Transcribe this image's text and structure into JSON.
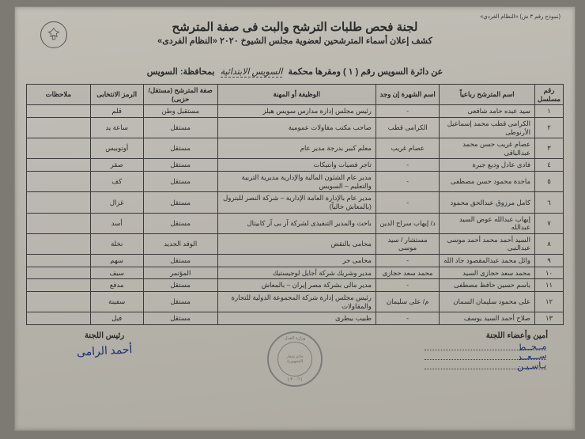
{
  "form_no": "(نموذج رقم ٣ ش) «النظام الفردي»",
  "header": {
    "title": "لجنة فحص طلبات الترشح والبت فى صفة المترشح",
    "subtitle": "كشف إعلان أسماء المترشحين لعضوية مجلس الشيوخ ٢٠٢٠ «النظام الفردى»"
  },
  "district": {
    "prefix": "عن دائرة السويس رقم (",
    "num": "١",
    "mid": ") ومقرها محكمة",
    "court": "السويس الابتدائية",
    "gov_label": "بمحافظة:",
    "gov": "السويس"
  },
  "columns": {
    "seq": "رقم مسلسل",
    "name": "اسم المترشح رباعياً",
    "fame": "اسم الشهرة إن وجد",
    "job": "الوظيفة أو المهنة",
    "capacity": "صفة المترشح (مستقل/حزبى)",
    "symbol": "الرمز الانتخابى",
    "notes": "ملاحظات"
  },
  "rows": [
    {
      "n": "١",
      "name": "سيد عبده حامد شافعى",
      "fame": "-",
      "job": "رئيس مجلس إدارة مدارس سويس هيلز",
      "cap": "مستقبل وطن",
      "sym": "قلم",
      "notes": ""
    },
    {
      "n": "٢",
      "name": "الكرامى قطب محمد إسماعيل الأرنوطى",
      "fame": "الكرامى قطب",
      "job": "صاحب مكتب مقاولات عمومية",
      "cap": "مستقل",
      "sym": "ساعة يد",
      "notes": ""
    },
    {
      "n": "٣",
      "name": "عصام غريب حسن محمد عبدالباقى",
      "fame": "عصام غريب",
      "job": "معلم كبير بدرجة مدير عام",
      "cap": "مستقل",
      "sym": "أوتوبيس",
      "notes": ""
    },
    {
      "n": "٤",
      "name": "فادى عادل وديع جبرة",
      "fame": "-",
      "job": "تاجر فضيات وانتيكات",
      "cap": "مستقل",
      "sym": "صقر",
      "notes": ""
    },
    {
      "n": "٥",
      "name": "ماجدة محمود حسن مصطفى",
      "fame": "-",
      "job": "مدير عام الشئون المالية والإدارية مديرية التربية والتعليم – السويس",
      "cap": "مستقل",
      "sym": "كف",
      "notes": ""
    },
    {
      "n": "٦",
      "name": "كامل مرزوق عبدالحق محمود",
      "fame": "-",
      "job": "مدير عام بالإدارة العامة الإدارية – شركة النصر للبترول (بالمعاش حالياً)",
      "cap": "مستقل",
      "sym": "غزال",
      "notes": ""
    },
    {
      "n": "٧",
      "name": "إيهاب عبدالله عوض السيد عبدالله",
      "fame": "د/ إيهاب سراج الدين",
      "job": "باحث والمدير التنفيذى لشركة آر بى آر كابيتال",
      "cap": "مستقل",
      "sym": "أسد",
      "notes": ""
    },
    {
      "n": "٨",
      "name": "السيد أحمد محمد أحمد موسى عبدالنبى",
      "fame": "مستشار / سيد موسى",
      "job": "محامى بالنقض",
      "cap": "الوفد الجديد",
      "sym": "نخلة",
      "notes": ""
    },
    {
      "n": "٩",
      "name": "وائل محمد عبدالمقصود جاد الله",
      "fame": "-",
      "job": "محامى حر",
      "cap": "مستقل",
      "sym": "سهم",
      "notes": ""
    },
    {
      "n": "١٠",
      "name": "محمد سعد حجازى السيد",
      "fame": "محمد سعد حجازى",
      "job": "مدير وشريك شركة أجايل لوجيستيك",
      "cap": "المؤتمر",
      "sym": "سيف",
      "notes": ""
    },
    {
      "n": "١١",
      "name": "باسم حسين حافظ مصطفى",
      "fame": "-",
      "job": "مدير مالى بشركة مصر إيران – بالمعاش",
      "cap": "مستقل",
      "sym": "مدفع",
      "notes": ""
    },
    {
      "n": "١٢",
      "name": "على محمود سليمان السمان",
      "fame": "م/ على سليمان",
      "job": "رئيس مجلس إدارة شركة المجموعة الدولية للتجارة والمقاولات",
      "cap": "مستقل",
      "sym": "سفينة",
      "notes": ""
    },
    {
      "n": "١٣",
      "name": "صلاح أحمد السيد يوسف",
      "fame": "-",
      "job": "طبيب بيطرى",
      "cap": "مستقل",
      "sym": "فيل",
      "notes": ""
    }
  ],
  "footer": {
    "members_label": "أمين وأعضاء اللجنة",
    "members": [
      "١ ـــــــــــــــ",
      "٢ ـــــــــــــــ",
      "٣ ـــــــــــــــ"
    ],
    "stamp_top": "وزارة العدل",
    "stamp_mid": "خاتم شعار الجمهورية",
    "stamp_bot": "( ٣٠٠٦ )",
    "chair_label": "رئيس اللجنة",
    "chair_sig": "أحمد الرامى"
  }
}
